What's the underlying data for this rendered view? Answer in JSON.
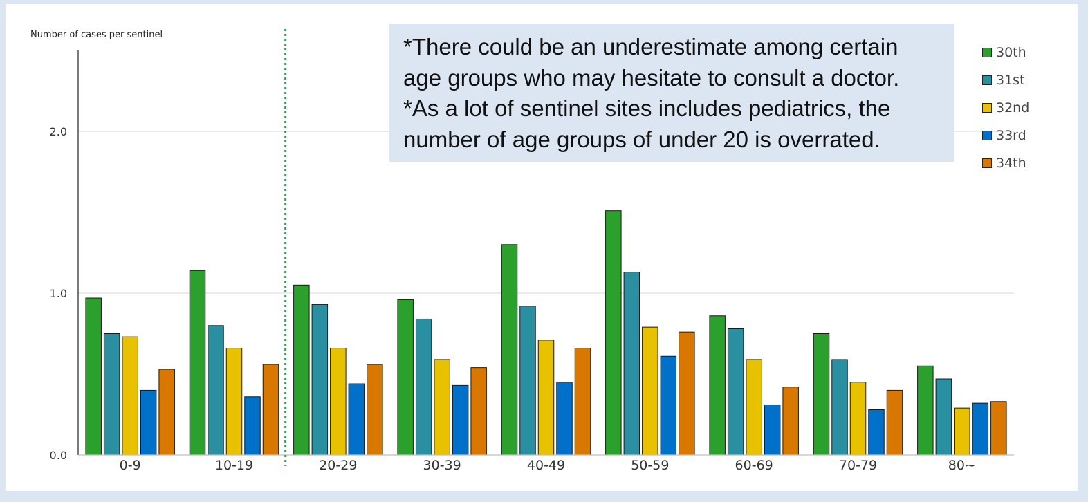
{
  "chart_data": {
    "type": "bar",
    "ylabel": "Number of cases per sentinel",
    "ylim": [
      0,
      2.5
    ],
    "yticks": [
      "0.0",
      "1.0",
      "2.0"
    ],
    "ytick_values": [
      0,
      1,
      2
    ],
    "grid": true,
    "legend_position": "right",
    "categories": [
      "0-9",
      "10-19",
      "20-29",
      "30-39",
      "40-49",
      "50-59",
      "60-69",
      "70-79",
      "80~"
    ],
    "series": [
      {
        "name": "30th",
        "color": "#2ca02c",
        "values": [
          0.97,
          1.14,
          1.05,
          0.96,
          1.3,
          1.51,
          0.86,
          0.75,
          0.55
        ]
      },
      {
        "name": "31st",
        "color": "#2a8fa0",
        "values": [
          0.75,
          0.8,
          0.93,
          0.84,
          0.92,
          1.13,
          0.78,
          0.59,
          0.47
        ]
      },
      {
        "name": "32nd",
        "color": "#e8c200",
        "values": [
          0.73,
          0.66,
          0.66,
          0.59,
          0.71,
          0.79,
          0.59,
          0.45,
          0.29
        ]
      },
      {
        "name": "33rd",
        "color": "#0070c8",
        "values": [
          0.4,
          0.36,
          0.44,
          0.43,
          0.45,
          0.61,
          0.31,
          0.28,
          0.32
        ]
      },
      {
        "name": "34th",
        "color": "#d97800",
        "values": [
          0.53,
          0.56,
          0.56,
          0.54,
          0.66,
          0.76,
          0.42,
          0.4,
          0.33
        ]
      }
    ],
    "annotation_lines": [
      "*There could be an underestimate among certain",
      "age groups who may hesitate to consult a doctor.",
      "*As a lot of sentinel sites includes pediatrics, the",
      "number of age groups of under 20 is overrated."
    ]
  },
  "colors": {
    "background": "#dce6f2",
    "note_box": "#dce6f2",
    "divider_line": "#22aa55",
    "gridline": "#d9d9d9"
  }
}
